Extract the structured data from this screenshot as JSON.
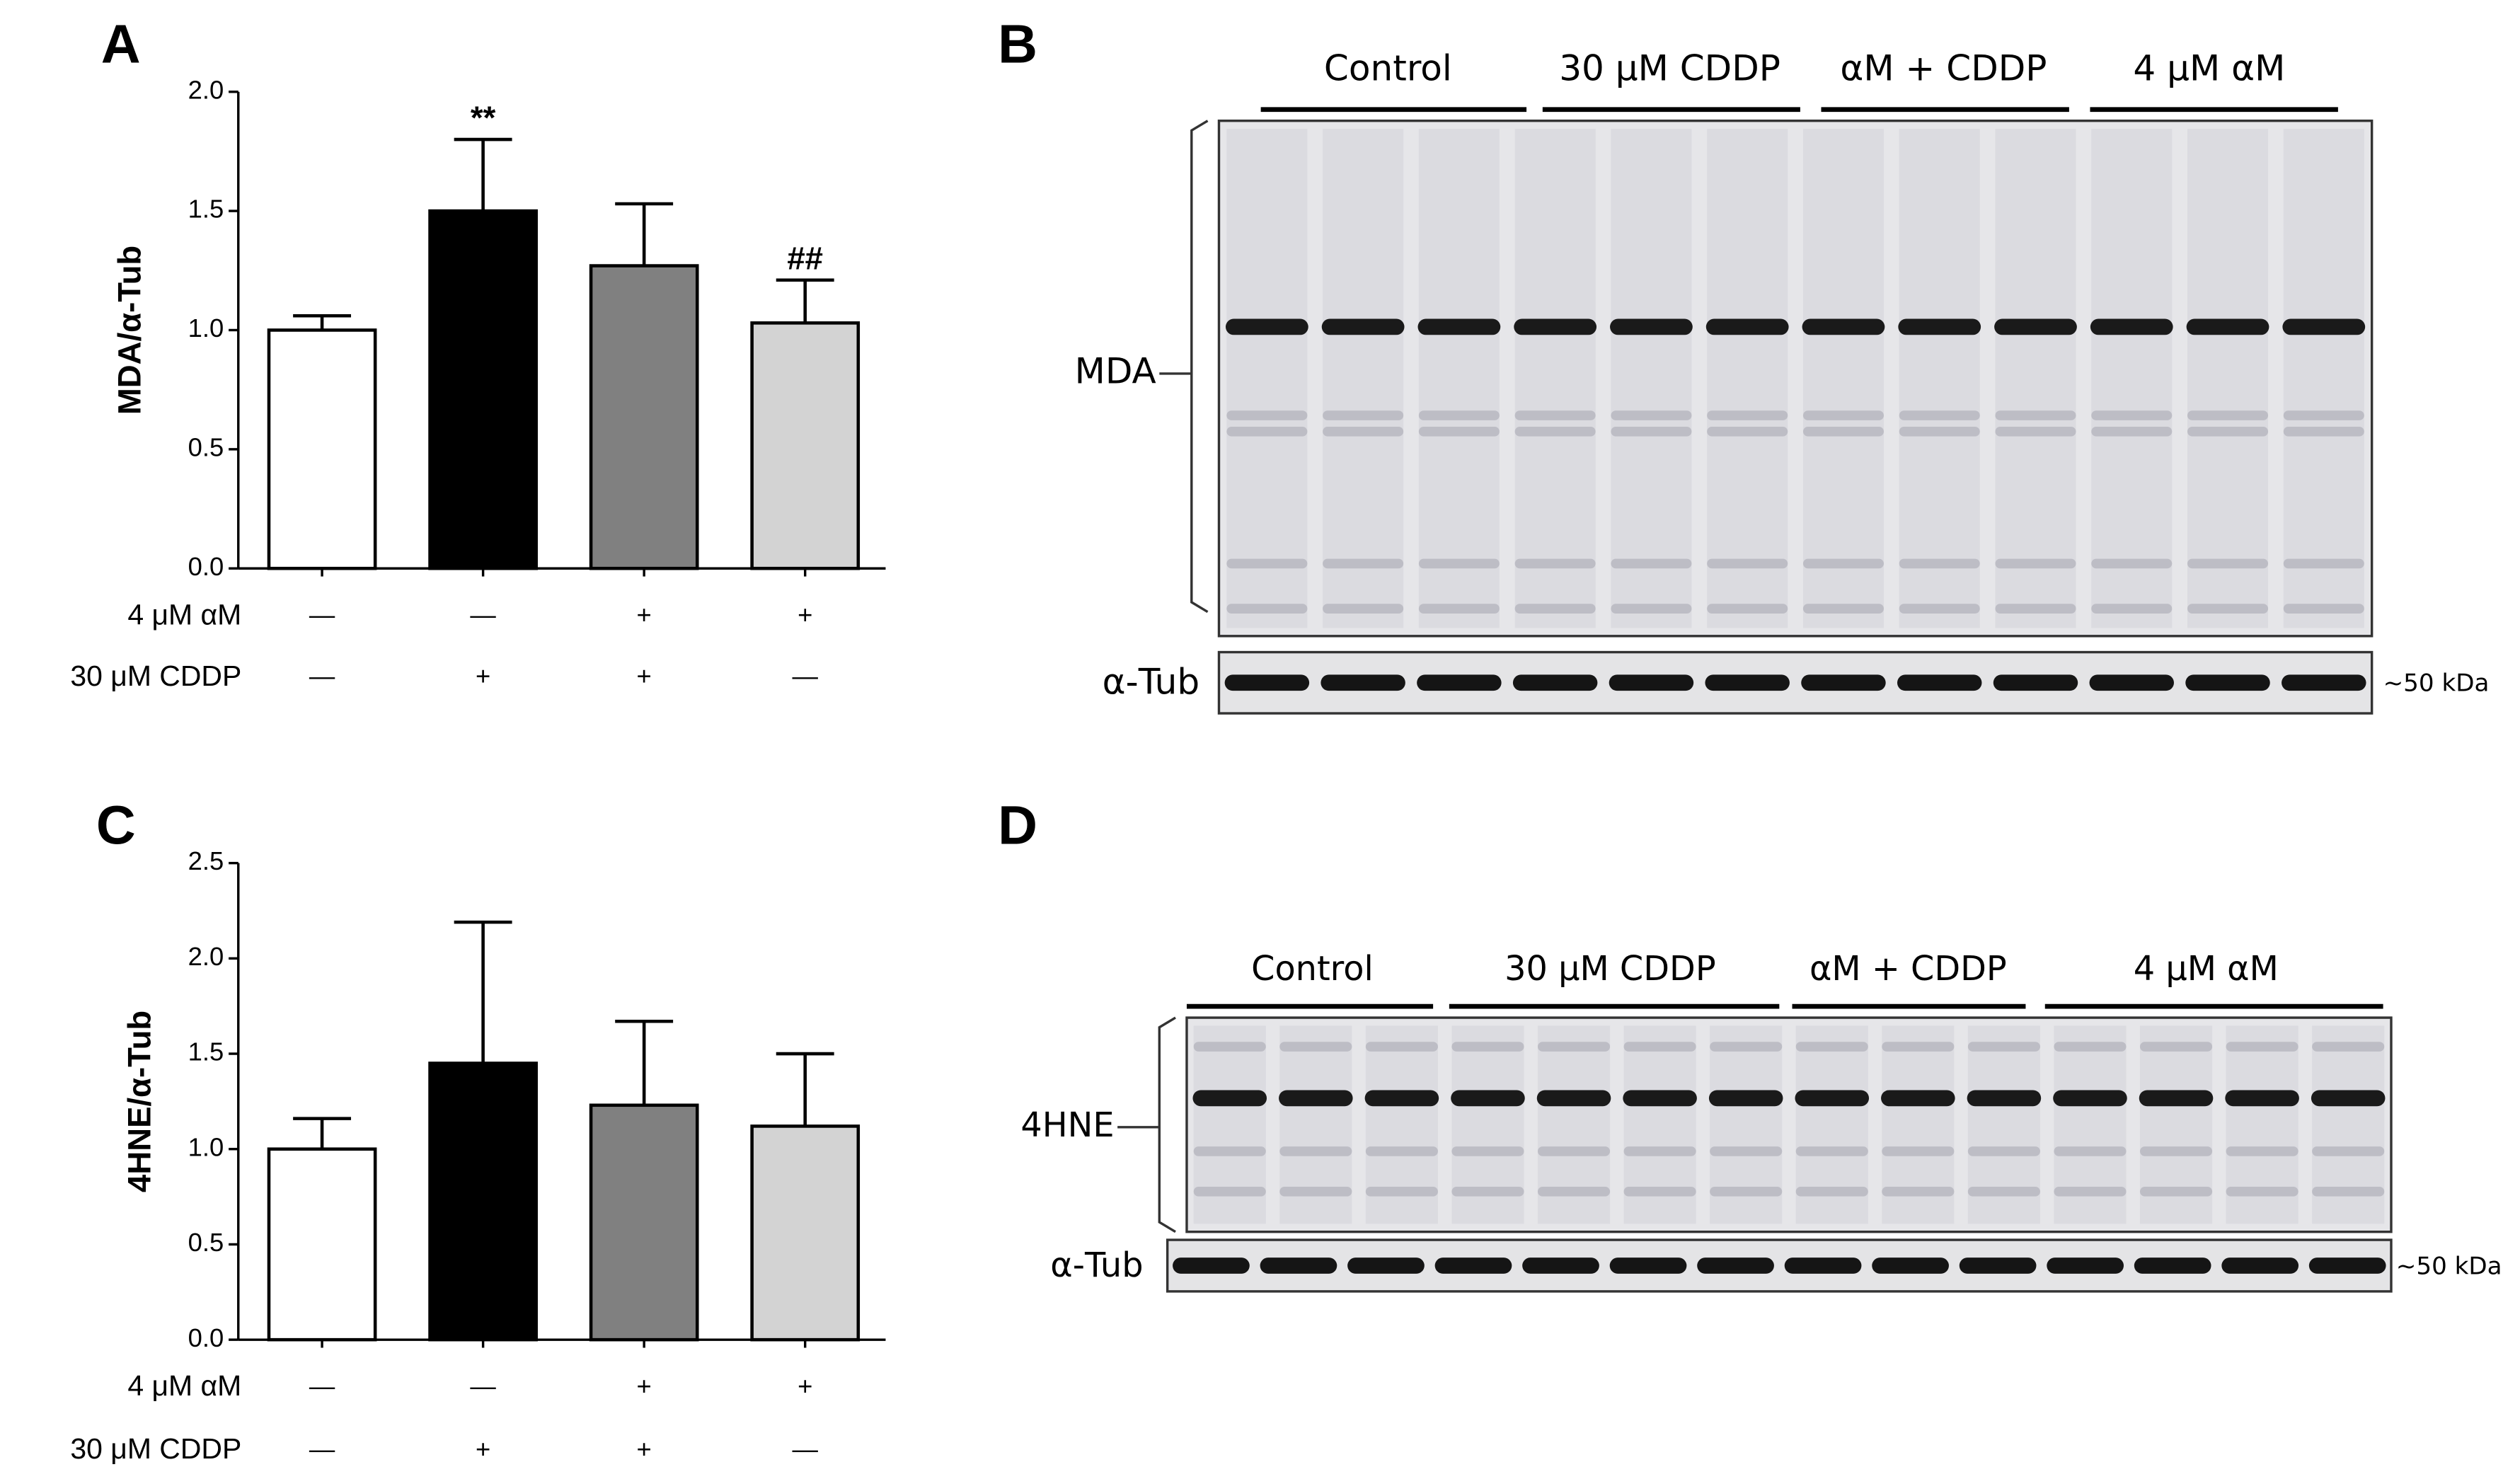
{
  "chart_data": [
    {
      "type": "bar",
      "panel": "A",
      "ylabel": "MDA/α-Tub",
      "categories": [
        null,
        null,
        null,
        null
      ],
      "values": [
        1.0,
        1.5,
        1.27,
        1.03
      ],
      "errors": [
        0.06,
        0.3,
        0.26,
        0.18
      ],
      "colors": [
        "#ffffff",
        "#000000",
        "#808080",
        "#d3d3d3"
      ],
      "significance": [
        null,
        "**",
        null,
        "##"
      ],
      "treatments": [
        {
          "name": "4 μM αM",
          "values": [
            "—",
            "—",
            "+",
            "+"
          ]
        },
        {
          "name": "30 μM CDDP",
          "values": [
            "—",
            "+",
            "+",
            "—"
          ]
        }
      ],
      "ylim": [
        0,
        2
      ],
      "yticks": [
        {
          "value": 0,
          "label": "0.0"
        },
        {
          "value": 0.5,
          "label": "0.5"
        },
        {
          "value": 1,
          "label": "1.0"
        },
        {
          "value": 1.5,
          "label": "1.5"
        },
        {
          "value": 2,
          "label": "2.0"
        }
      ]
    },
    {
      "type": "bar",
      "panel": "C",
      "ylabel": "4HNE/α-Tub",
      "categories": [
        null,
        null,
        null,
        null
      ],
      "values": [
        1.0,
        1.45,
        1.23,
        1.12
      ],
      "errors": [
        0.16,
        0.74,
        0.44,
        0.38
      ],
      "colors": [
        "#ffffff",
        "#000000",
        "#808080",
        "#d3d3d3"
      ],
      "significance": [
        null,
        null,
        null,
        null
      ],
      "treatments": [
        {
          "name": "4 μM αM",
          "values": [
            "—",
            "—",
            "+",
            "+"
          ]
        },
        {
          "name": "30 μM CDDP",
          "values": [
            "—",
            "+",
            "+",
            "—"
          ]
        }
      ],
      "ylim": [
        0,
        2.5
      ],
      "yticks": [
        {
          "value": 0,
          "label": "0.0"
        },
        {
          "value": 0.5,
          "label": "0.5"
        },
        {
          "value": 1,
          "label": "1.0"
        },
        {
          "value": 1.5,
          "label": "1.5"
        },
        {
          "value": 2,
          "label": "2.0"
        },
        {
          "value": 2.5,
          "label": "2.5"
        }
      ]
    }
  ],
  "blots": [
    {
      "panel": "B",
      "groups": [
        "Control",
        "30 μM CDDP",
        "αM + CDDP",
        "4 μM αM"
      ],
      "target": "MDA",
      "loading": "α-Tub",
      "marker": "~50 kDa"
    },
    {
      "panel": "D",
      "groups": [
        "Control",
        "30 μM CDDP",
        "αM + CDDP",
        "4 μM αM"
      ],
      "target": "4HNE",
      "loading": "α-Tub",
      "marker": "~50 kDa"
    }
  ]
}
